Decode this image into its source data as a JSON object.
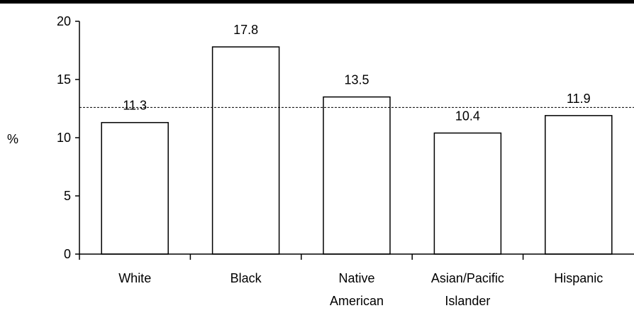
{
  "colors": {
    "bar_fill": "#ffffff",
    "bar_stroke": "#000000",
    "axis": "#000000",
    "top_rule": "#000000",
    "reference_line": "#000000"
  },
  "chart_data": {
    "type": "bar",
    "title": "",
    "xlabel": "",
    "ylabel": "%",
    "ylim": [
      0,
      20
    ],
    "yticks": [
      0,
      5,
      10,
      15,
      20
    ],
    "grid": false,
    "legend": "none",
    "categories": [
      [
        "White"
      ],
      [
        "Black"
      ],
      [
        "Native",
        "American"
      ],
      [
        "Asian/Pacific",
        "Islander"
      ],
      [
        "Hispanic"
      ]
    ],
    "values": [
      11.3,
      17.8,
      13.5,
      10.4,
      11.9
    ],
    "data_labels": [
      "11.3",
      "17.8",
      "13.5",
      "10.4",
      "11.9"
    ],
    "reference_line": {
      "value": 12.6,
      "style": "dashed"
    }
  }
}
